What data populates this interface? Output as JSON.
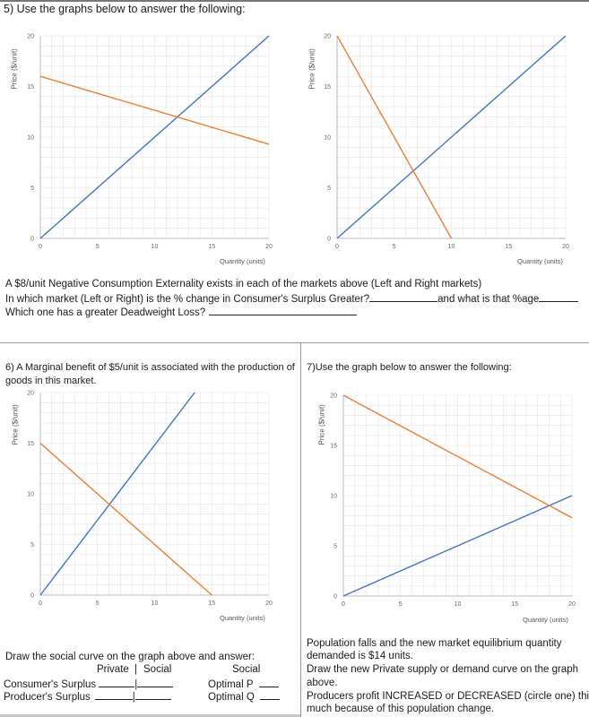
{
  "q5": {
    "heading": "5) Use the graphs below to answer the following:",
    "line1": "A $8/unit Negative Consumption Externality exists in each of the markets above (Left and Right markets)",
    "line2a": "In which market (Left or Right) is the % change in Consumer's Surplus Greater?",
    "line2b": "and what is that %age",
    "line3": "Which one has a greater Deadweight Loss?"
  },
  "q6": {
    "line1": "6) A Marginal benefit of $5/unit is associated with the production of",
    "line2": "goods in this market.",
    "instructions": "Draw the social curve on the graph above and answer:",
    "col_private": "Private",
    "col_sep": "|",
    "col_social": "Social",
    "col_social2": "Social",
    "row1": "Consumer's Surplus",
    "row2": "Producer's Surplus",
    "opt_p": "Optimal P",
    "opt_q": "Optimal Q"
  },
  "q7": {
    "heading": "7)Use the graph below to answer the following:",
    "line1": "Population falls and the new market equilibrium quantity",
    "line2": "demanded is $14 units.",
    "line3": "Draw the new Private supply or demand curve on the graph",
    "line4": "above.",
    "line5": "Producers profit INCREASED or DECREASED (circle one) this",
    "line6": "much because of this population change."
  },
  "axis": {
    "ylabel": "Price ($/unit)",
    "xlabel": "Quantity (units)",
    "xticks": [
      "0",
      "5",
      "10",
      "15",
      "20"
    ],
    "yticks": [
      "0",
      "5",
      "10",
      "15",
      "20"
    ]
  },
  "colors": {
    "supply": "#4472c4",
    "demand": "#ed7d31",
    "grid": "#e4e4e4"
  },
  "chart_data": [
    {
      "type": "line",
      "panel": "q5-left",
      "xlim": [
        0,
        20
      ],
      "ylim": [
        0,
        20
      ],
      "grid": true,
      "series": [
        {
          "x": [
            0,
            20
          ],
          "y": [
            0,
            20
          ]
        },
        {
          "x": [
            0,
            20
          ],
          "y": [
            16,
            9.3
          ]
        }
      ]
    },
    {
      "type": "line",
      "panel": "q5-right",
      "xlim": [
        0,
        20
      ],
      "ylim": [
        0,
        20
      ],
      "grid": true,
      "series": [
        {
          "x": [
            0,
            20
          ],
          "y": [
            0,
            20
          ]
        },
        {
          "x": [
            0,
            10
          ],
          "y": [
            20,
            0
          ]
        }
      ]
    },
    {
      "type": "line",
      "panel": "q6",
      "xlim": [
        0,
        20
      ],
      "ylim": [
        0,
        20
      ],
      "grid": true,
      "series": [
        {
          "x": [
            0,
            13.5
          ],
          "y": [
            0,
            20
          ]
        },
        {
          "x": [
            0,
            15
          ],
          "y": [
            15,
            0
          ]
        }
      ]
    },
    {
      "type": "line",
      "panel": "q7",
      "xlim": [
        0,
        20
      ],
      "ylim": [
        0,
        20
      ],
      "grid": true,
      "series": [
        {
          "x": [
            0,
            20
          ],
          "y": [
            0,
            10
          ]
        },
        {
          "x": [
            0,
            20
          ],
          "y": [
            20,
            7.8
          ]
        }
      ]
    }
  ]
}
